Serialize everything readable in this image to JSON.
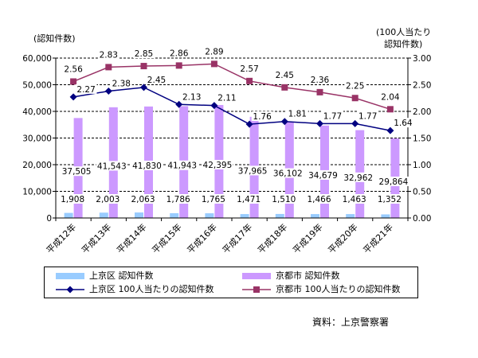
{
  "chart_data": {
    "type": "bar",
    "categories": [
      "平成12年",
      "平成13年",
      "平成14年",
      "平成15年",
      "平成16年",
      "平成17年",
      "平成18年",
      "平成19年",
      "平成20年",
      "平成21年"
    ],
    "left_axis_label": "(認知件数)",
    "right_axis_label_line1": "(100人当たり",
    "right_axis_label_line2": "認知件数)",
    "left_ticks": [
      "0",
      "10,000",
      "20,000",
      "30,000",
      "40,000",
      "50,000",
      "60,000"
    ],
    "right_ticks": [
      "0.00",
      "0.50",
      "1.00",
      "1.50",
      "2.00",
      "2.50",
      "3.00"
    ],
    "ylim_left": [
      0,
      60000
    ],
    "ylim_right": [
      0,
      3.0
    ],
    "grid": true,
    "bar_series": [
      {
        "name": "上京区 認知件数",
        "color": "#99ccff",
        "values": [
          1908,
          2003,
          2063,
          1786,
          1765,
          1471,
          1510,
          1466,
          1463,
          1352
        ],
        "labels": [
          "1,908",
          "2,003",
          "2,063",
          "1,786",
          "1,765",
          "1,471",
          "1,510",
          "1,466",
          "1,463",
          "1,352"
        ]
      },
      {
        "name": "京都市 認知件数",
        "color": "#cc99ff",
        "values": [
          37505,
          41543,
          41830,
          41943,
          42395,
          37965,
          36102,
          34679,
          32962,
          29864
        ],
        "labels": [
          "37,505",
          "41,543",
          "41,830",
          "41,943",
          "42,395",
          "37,965",
          "36,102",
          "34,679",
          "32,962",
          "29,864"
        ]
      }
    ],
    "line_series": [
      {
        "name": "上京区 100人当たりの認知件数",
        "color": "#000080",
        "marker": "diamond",
        "values": [
          2.27,
          2.38,
          2.45,
          2.13,
          2.11,
          1.76,
          1.81,
          1.77,
          1.77,
          1.64
        ],
        "labels": [
          "2.27",
          "2.38",
          "2.45",
          "2.13",
          "2.11",
          "1.76",
          "1.81",
          "1.77",
          "1.77",
          "1.64"
        ]
      },
      {
        "name": "京都市 100人当たりの認知件数",
        "color": "#993366",
        "marker": "square",
        "values": [
          2.56,
          2.83,
          2.85,
          2.86,
          2.89,
          2.57,
          2.45,
          2.36,
          2.25,
          2.04
        ],
        "labels": [
          "2.56",
          "2.83",
          "2.85",
          "2.86",
          "2.89",
          "2.57",
          "2.45",
          "2.36",
          "2.25",
          "2.04"
        ]
      }
    ],
    "legend_position": "bottom"
  },
  "source": "資料：上京警察署"
}
